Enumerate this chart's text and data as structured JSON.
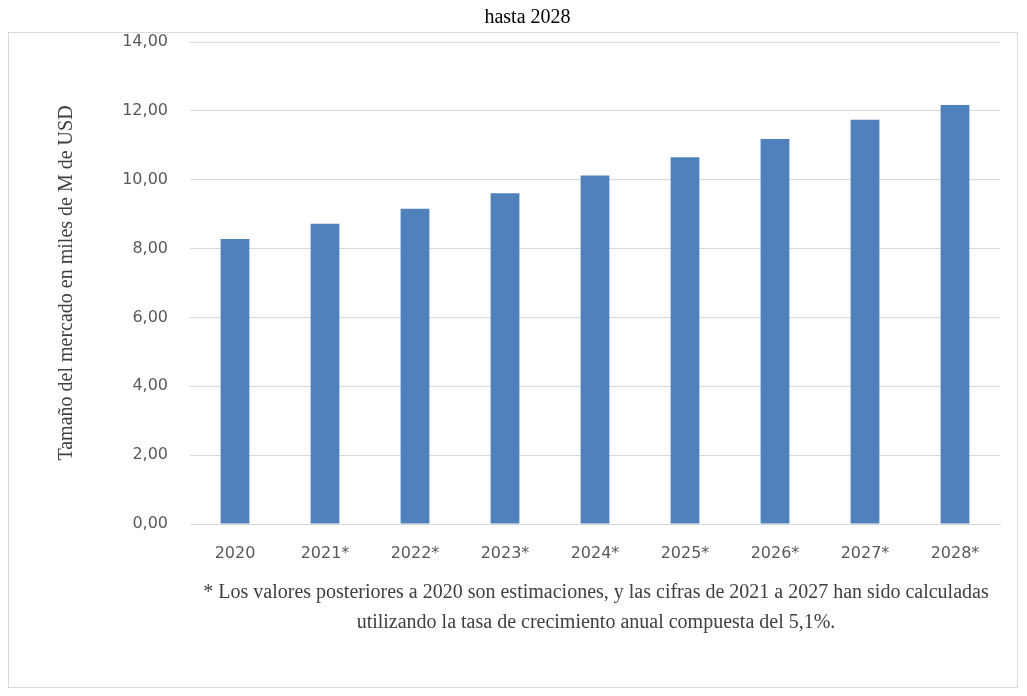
{
  "chart_data": {
    "type": "bar",
    "title": "hasta 2028",
    "ylabel": "Tamaño del mercado en miles de M de USD",
    "categories": [
      "2020",
      "2021*",
      "2022*",
      "2023*",
      "2024*",
      "2025*",
      "2026*",
      "2027*",
      "2028*"
    ],
    "values": [
      8.28,
      8.72,
      9.16,
      9.61,
      10.12,
      10.65,
      11.18,
      11.74,
      12.17
    ],
    "color": "#4f81bd",
    "ylim": [
      0,
      14
    ],
    "yticks": [
      {
        "value": 0,
        "label": "0,00"
      },
      {
        "value": 2,
        "label": "2,00"
      },
      {
        "value": 4,
        "label": "4,00"
      },
      {
        "value": 6,
        "label": "6,00"
      },
      {
        "value": 8,
        "label": "8,00"
      },
      {
        "value": 10,
        "label": "10,00"
      },
      {
        "value": 12,
        "label": "12,00"
      },
      {
        "value": 14,
        "label": "14,00"
      }
    ],
    "grid": "y",
    "annotations": [
      "* Los valores posteriores a 2020 son estimaciones, y las cifras de 2021 a 2027 han sido calculadas utilizando la tasa de crecimiento anual compuesta del 5,1%."
    ]
  }
}
